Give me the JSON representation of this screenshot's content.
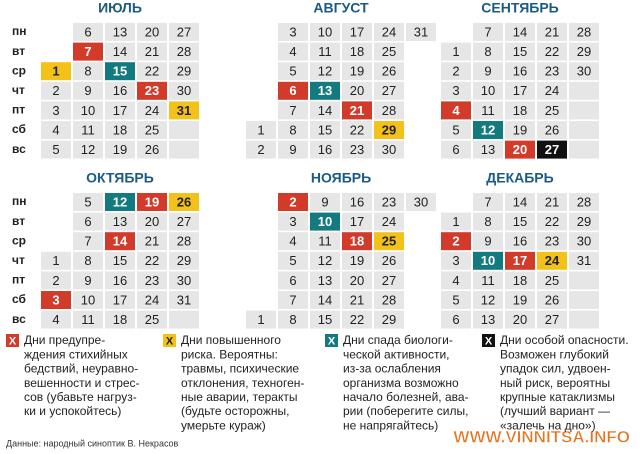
{
  "weekdays": [
    "пн",
    "вт",
    "ср",
    "чт",
    "пт",
    "сб",
    "вс"
  ],
  "months": [
    {
      "name": "ИЮЛЬ",
      "rows": [
        [
          null,
          6,
          13,
          20,
          27
        ],
        [
          null,
          {
            "value": 7,
            "color": "#d23a2a"
          },
          14,
          21,
          28
        ],
        [
          {
            "value": 1,
            "color": "#f2c21b"
          },
          8,
          {
            "value": 15,
            "color": "#137a80"
          },
          22,
          29
        ],
        [
          2,
          9,
          16,
          {
            "value": 23,
            "color": "#d23a2a"
          },
          30
        ],
        [
          3,
          10,
          17,
          24,
          {
            "value": 31,
            "color": "#f2c21b"
          }
        ],
        [
          4,
          11,
          18,
          25,
          null
        ],
        [
          5,
          12,
          19,
          26,
          null
        ]
      ]
    },
    {
      "name": "АВГУСТ",
      "rows": [
        [
          null,
          3,
          10,
          17,
          24,
          31
        ],
        [
          null,
          4,
          11,
          18,
          25
        ],
        [
          null,
          5,
          12,
          19,
          26
        ],
        [
          null,
          {
            "value": 6,
            "color": "#d23a2a"
          },
          {
            "value": 13,
            "color": "#137a80"
          },
          20,
          27
        ],
        [
          null,
          7,
          14,
          {
            "value": 21,
            "color": "#d23a2a"
          },
          28
        ],
        [
          1,
          8,
          15,
          22,
          {
            "value": 29,
            "color": "#f2c21b"
          }
        ],
        [
          2,
          9,
          16,
          23,
          30
        ]
      ]
    },
    {
      "name": "СЕНТЯБРЬ",
      "rows": [
        [
          null,
          7,
          14,
          21,
          28
        ],
        [
          1,
          8,
          15,
          22,
          29
        ],
        [
          2,
          9,
          16,
          23,
          30
        ],
        [
          3,
          10,
          17,
          24,
          null
        ],
        [
          {
            "value": 4,
            "color": "#d23a2a"
          },
          11,
          18,
          25,
          null
        ],
        [
          5,
          {
            "value": 12,
            "color": "#137a80"
          },
          19,
          26,
          null
        ],
        [
          6,
          13,
          {
            "value": 20,
            "color": "#d23a2a"
          },
          {
            "value": 27,
            "color": "#111111"
          },
          null
        ]
      ]
    },
    {
      "name": "ОКТЯБРЬ",
      "rows": [
        [
          null,
          5,
          {
            "value": 12,
            "color": "#137a80"
          },
          {
            "value": 19,
            "color": "#d23a2a"
          },
          {
            "value": 26,
            "color": "#f2c21b"
          }
        ],
        [
          null,
          6,
          13,
          20,
          27
        ],
        [
          null,
          7,
          {
            "value": 14,
            "color": "#d23a2a"
          },
          21,
          28
        ],
        [
          1,
          8,
          15,
          22,
          29
        ],
        [
          2,
          9,
          16,
          23,
          30
        ],
        [
          {
            "value": 3,
            "color": "#d23a2a"
          },
          10,
          17,
          24,
          31
        ],
        [
          4,
          11,
          18,
          25,
          null
        ]
      ]
    },
    {
      "name": "НОЯБРЬ",
      "rows": [
        [
          null,
          {
            "value": 2,
            "color": "#d23a2a"
          },
          9,
          16,
          23,
          30
        ],
        [
          null,
          3,
          {
            "value": 10,
            "color": "#137a80"
          },
          17,
          24
        ],
        [
          null,
          4,
          11,
          {
            "value": 18,
            "color": "#d23a2a"
          },
          {
            "value": 25,
            "color": "#f2c21b"
          }
        ],
        [
          null,
          5,
          12,
          19,
          26
        ],
        [
          null,
          6,
          13,
          20,
          27
        ],
        [
          null,
          7,
          14,
          21,
          28
        ],
        [
          1,
          8,
          15,
          22,
          29
        ]
      ]
    },
    {
      "name": "ДЕКАБРЬ",
      "rows": [
        [
          null,
          7,
          14,
          21,
          28
        ],
        [
          1,
          8,
          15,
          22,
          29
        ],
        [
          {
            "value": 2,
            "color": "#d23a2a"
          },
          9,
          16,
          23,
          30
        ],
        [
          3,
          {
            "value": 10,
            "color": "#137a80"
          },
          {
            "value": 17,
            "color": "#d23a2a"
          },
          {
            "value": 24,
            "color": "#f2c21b"
          },
          31
        ],
        [
          4,
          11,
          18,
          25,
          null
        ],
        [
          5,
          12,
          19,
          26,
          null
        ],
        [
          6,
          13,
          20,
          27,
          null
        ]
      ]
    }
  ],
  "legend": [
    {
      "marker": "X",
      "color": "#d23a2a",
      "lines": [
        "Дни предупре-",
        "ждения стихийных",
        "бедствий, неуравно-",
        "вешенности и стрес-",
        "сов (убавьте нагруз-",
        "ки и успокойтесь)"
      ]
    },
    {
      "marker": "X",
      "color": "#f2c21b",
      "lines": [
        "Дни повышенного",
        "риска. Вероятны:",
        "травмы, психические",
        "отклонения, техноген-",
        "ные аварии, теракты",
        "(будьте осторожны,",
        "умерьте кураж)"
      ]
    },
    {
      "marker": "X",
      "color": "#137a80",
      "lines": [
        "Дни спада биологи-",
        "ческой активности,",
        "из-за ослабления",
        "организма возможно",
        "начало болезней, ава-",
        "рии (поберегите силы,",
        "не напрягайтесь)"
      ]
    },
    {
      "marker": "X",
      "color": "#111111",
      "lines": [
        "Дни особой опасности.",
        "Возможен глубокий",
        "упадок сил, удвоен-",
        "ный риск, вероятны",
        "крупные катаклизмы",
        "(лучший вариант —",
        "«залечь на дно»)"
      ]
    }
  ],
  "footer": "Данные: народный синоптик В. Некрасов",
  "watermark": "WWW.VINNITSA.INFO"
}
